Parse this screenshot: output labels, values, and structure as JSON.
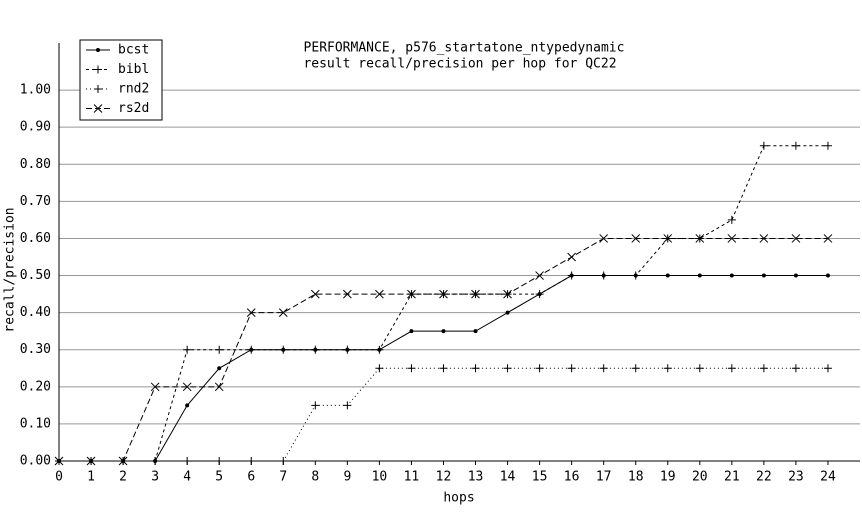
{
  "chart_data": {
    "type": "line",
    "title": "PERFORMANCE, p576_startatone_ntypedynamic",
    "subtitle": "result recall/precision per hop for QC22",
    "x_label": "hops",
    "y_label": "recall/precision",
    "x": [
      0,
      1,
      2,
      3,
      4,
      5,
      6,
      7,
      8,
      9,
      10,
      11,
      12,
      13,
      14,
      15,
      16,
      17,
      18,
      19,
      20,
      21,
      22,
      23,
      24
    ],
    "xlim": [
      0,
      25
    ],
    "xticks": [
      0,
      1,
      2,
      3,
      4,
      5,
      6,
      7,
      8,
      9,
      10,
      11,
      12,
      13,
      14,
      15,
      16,
      17,
      18,
      19,
      20,
      21,
      22,
      23,
      24
    ],
    "ylim": [
      0,
      1.1
    ],
    "yticks": [
      {
        "value": 0,
        "label": "0.00"
      },
      {
        "value": 0.1,
        "label": "0.10"
      },
      {
        "value": 0.2,
        "label": "0.20"
      },
      {
        "value": 0.3,
        "label": "0.30"
      },
      {
        "value": 0.4,
        "label": "0.40"
      },
      {
        "value": 0.5,
        "label": "0.50"
      },
      {
        "value": 0.6,
        "label": "0.60"
      },
      {
        "value": 0.7,
        "label": "0.70"
      },
      {
        "value": 0.8,
        "label": "0.80"
      },
      {
        "value": 0.9,
        "label": "0.90"
      },
      {
        "value": 1,
        "label": "1.00"
      }
    ],
    "grid": true,
    "legend": "top-left",
    "series": [
      {
        "name": "bcst",
        "color": "#000000",
        "dash": "none",
        "marker": "dot",
        "values": [
          0,
          0,
          0,
          0,
          0.15,
          0.25,
          0.3,
          0.3,
          0.3,
          0.3,
          0.3,
          0.35,
          0.35,
          0.35,
          0.4,
          0.45,
          0.5,
          0.5,
          0.5,
          0.5,
          0.5,
          0.5,
          0.5,
          0.5,
          0.5
        ]
      },
      {
        "name": "bibl",
        "color": "#000000",
        "dash": "3,3",
        "marker": "plus",
        "values": [
          0,
          0,
          0,
          0,
          0.3,
          0.3,
          0.3,
          0.3,
          0.3,
          0.3,
          0.3,
          0.45,
          0.45,
          0.45,
          0.45,
          0.45,
          0.5,
          0.5,
          0.5,
          0.6,
          0.6,
          0.65,
          0.85,
          0.85,
          0.85
        ]
      },
      {
        "name": "rnd2",
        "color": "#000000",
        "dash": "1,3",
        "marker": "plus",
        "values": [
          0,
          0,
          0,
          0,
          0,
          0,
          0,
          0,
          0.15,
          0.15,
          0.25,
          0.25,
          0.25,
          0.25,
          0.25,
          0.25,
          0.25,
          0.25,
          0.25,
          0.25,
          0.25,
          0.25,
          0.25,
          0.25,
          0.25
        ]
      },
      {
        "name": "rs2d",
        "color": "#000000",
        "dash": "6,3",
        "marker": "cross",
        "values": [
          0,
          0,
          0,
          0.2,
          0.2,
          0.2,
          0.4,
          0.4,
          0.45,
          0.45,
          0.45,
          0.45,
          0.45,
          0.45,
          0.45,
          0.5,
          0.55,
          0.6,
          0.6,
          0.6,
          0.6,
          0.6,
          0.6,
          0.6,
          0.6
        ]
      }
    ]
  }
}
